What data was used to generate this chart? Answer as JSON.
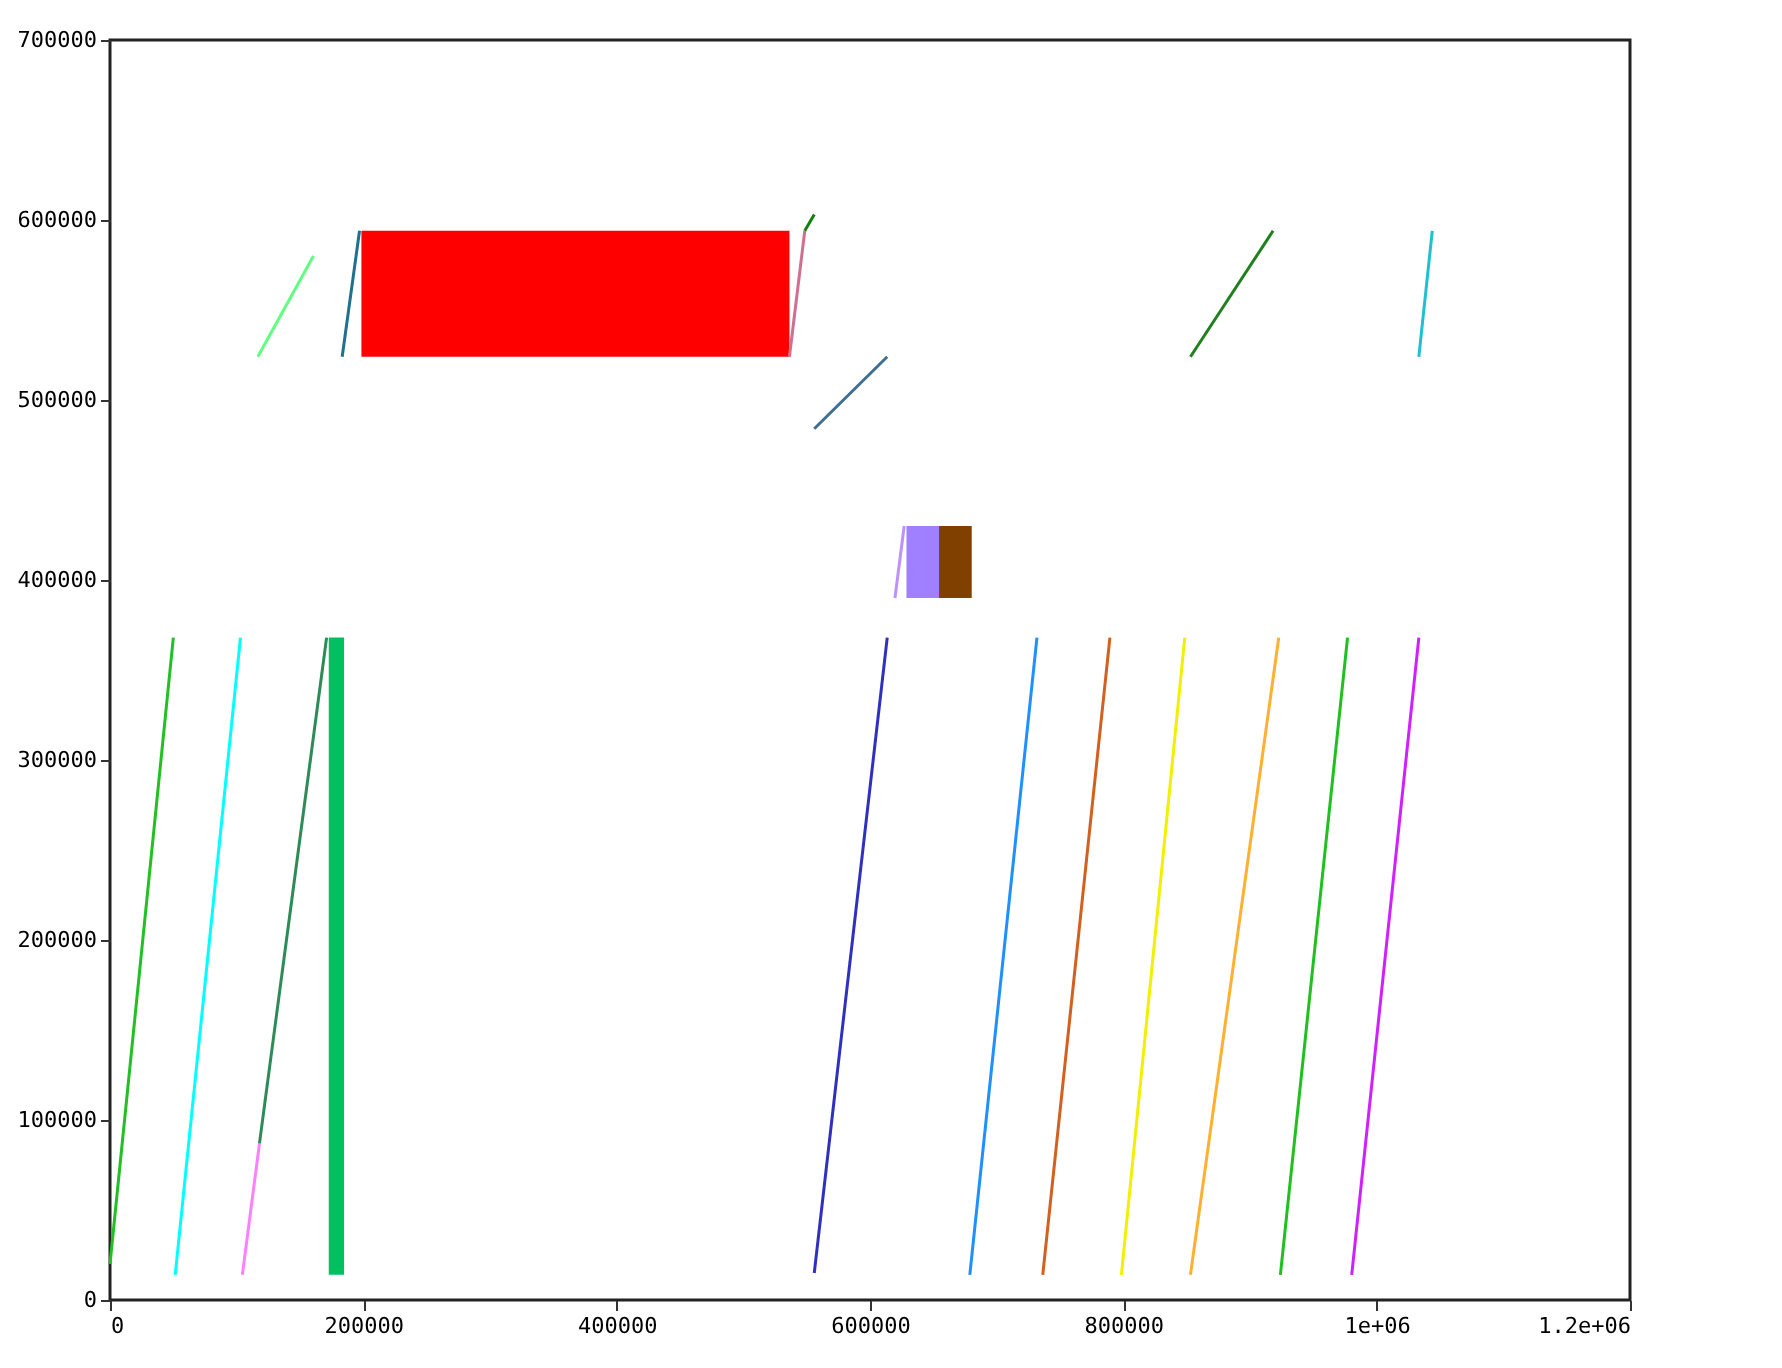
{
  "chart_data": {
    "type": "line",
    "xlim": [
      0,
      1200000
    ],
    "ylim": [
      0,
      700000
    ],
    "xticks": [
      0,
      200000,
      400000,
      600000,
      800000,
      {
        "value": 1000000,
        "label": "1e+06"
      },
      {
        "value": 1200000,
        "label": "1.2e+06"
      }
    ],
    "yticks": [
      0,
      100000,
      200000,
      300000,
      400000,
      500000,
      600000,
      700000
    ],
    "grid": false,
    "marker": "none",
    "line_style": "solid",
    "series": [
      {
        "color": "#22c022",
        "x": [
          0,
          50000
        ],
        "values": [
          20000,
          368000
        ]
      },
      {
        "color": "#00ffff",
        "x": [
          51500,
          103000
        ],
        "values": [
          14000,
          368000
        ]
      },
      {
        "color": "#ff80ff",
        "x": [
          104500,
          118000
        ],
        "values": [
          14000,
          87000
        ]
      },
      {
        "color": "#2e8b57",
        "x": [
          118000,
          171000
        ],
        "values": [
          87000,
          368000
        ]
      },
      {
        "color": "#00c060",
        "x": [
          172700,
          184800
        ],
        "values": [
          null,
          null
        ],
        "lower": [
          14000,
          14000
        ],
        "upper": [
          368000,
          368000
        ]
      },
      {
        "color": "#3030c0",
        "x": [
          556000,
          613600
        ],
        "values": [
          15000,
          368000
        ]
      },
      {
        "color": "#1e90ff",
        "x": [
          678800,
          731800
        ],
        "values": [
          14000,
          368000
        ]
      },
      {
        "color": "#d2601e",
        "x": [
          736400,
          789400
        ],
        "values": [
          14000,
          368000
        ]
      },
      {
        "color": "#f0f000",
        "x": [
          798500,
          848500
        ],
        "values": [
          14000,
          368000
        ]
      },
      {
        "color": "#ffb030",
        "x": [
          853000,
          922700
        ],
        "values": [
          14000,
          368000
        ]
      },
      {
        "color": "#20c020",
        "x": [
          924000,
          977000
        ],
        "values": [
          14000,
          368000
        ]
      },
      {
        "color": "#d020ff",
        "x": [
          980300,
          1033300
        ],
        "values": [
          14000,
          368000
        ]
      },
      {
        "color": "#c090ff",
        "x": [
          619700,
          627000
        ],
        "values": [
          390000,
          430000
        ]
      },
      {
        "color": "#a080ff",
        "x": [
          628800,
          654500
        ],
        "values": [
          null,
          null
        ],
        "lower": [
          390000,
          390000
        ],
        "upper": [
          430000,
          430000
        ]
      },
      {
        "color": "#804000",
        "x": [
          654500,
          680300
        ],
        "values": [
          null,
          null
        ],
        "lower": [
          390000,
          390000
        ],
        "upper": [
          430000,
          430000
        ]
      },
      {
        "color": "#60ff80",
        "x": [
          116700,
          160600
        ],
        "values": [
          524000,
          580000
        ]
      },
      {
        "color": "#207090",
        "x": [
          183300,
          197000
        ],
        "values": [
          524000,
          594000
        ]
      },
      {
        "color": "#ff0000",
        "x": [
          198500,
          536400
        ],
        "values": [
          null,
          null
        ],
        "lower": [
          524000,
          524000
        ],
        "upper": [
          594000,
          594000
        ]
      },
      {
        "color": "#d07090",
        "x": [
          536400,
          548500
        ],
        "values": [
          524000,
          594000
        ]
      },
      {
        "color": "#108010",
        "x": [
          548500,
          556000
        ],
        "values": [
          594000,
          603000
        ]
      },
      {
        "color": "#407090",
        "x": [
          556000,
          613600
        ],
        "values": [
          484000,
          524000
        ]
      },
      {
        "color": "#208020",
        "x": [
          853000,
          918200
        ],
        "values": [
          524000,
          594000
        ]
      },
      {
        "color": "#20c0d0",
        "x": [
          1033300,
          1043900
        ],
        "values": [
          524000,
          594000
        ]
      }
    ]
  }
}
